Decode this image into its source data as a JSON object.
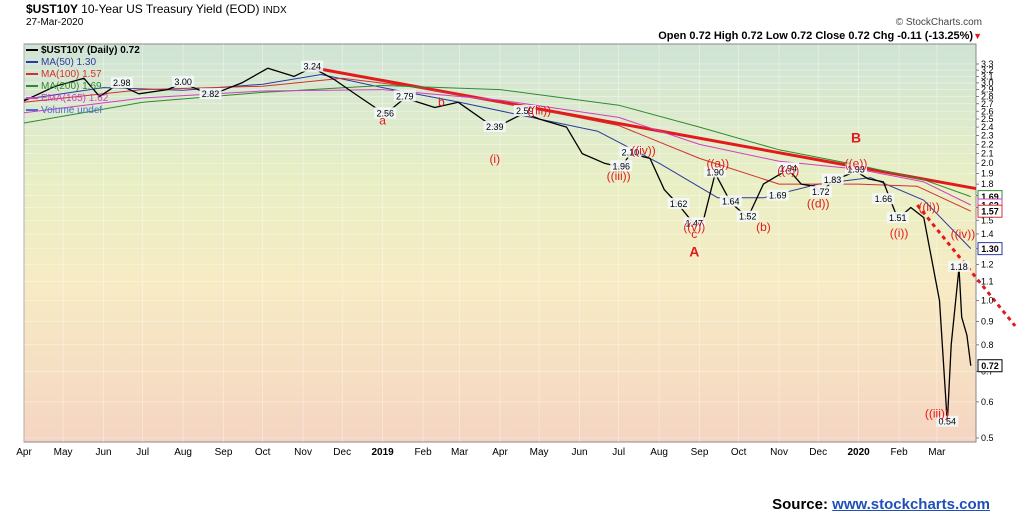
{
  "header": {
    "symbol": "$UST10Y",
    "description": "10-Year US Treasury Yield (EOD)",
    "exchange": "INDX",
    "date": "27-Mar-2020",
    "watermark": "© StockCharts.com",
    "ohlc": "Open 0.72  High 0.72  Low 0.72  Close 0.72  Chg -0.11 (-13.25%)"
  },
  "legend": [
    {
      "label": "$UST10Y (Daily) 0.72",
      "color": "#000000"
    },
    {
      "label": "MA(50) 1.30",
      "color": "#2b3aa0"
    },
    {
      "label": "MA(100) 1.57",
      "color": "#d43030"
    },
    {
      "label": "MA(200) 1.69",
      "color": "#2e8b2e"
    },
    {
      "label": "EMA(165) 1.62",
      "color": "#d040c0"
    },
    {
      "label": "Volume undef",
      "color": "#4a6cd0"
    }
  ],
  "source": {
    "label": "Source:",
    "link": "www.stockcharts.com"
  },
  "colors": {
    "trendline": "#e31a1c",
    "wave_label": "#e31a1c",
    "price": "#000000"
  },
  "chart_data": {
    "type": "line",
    "title": "$UST10Y 10-Year US Treasury Yield (EOD) INDX",
    "ylim": [
      0.5,
      3.3
    ],
    "y_scale": "log",
    "x_range": [
      "2018-04-01",
      "2020-03-31"
    ],
    "x_tick_labels": [
      {
        "label": "Apr",
        "date": "2018-04-01"
      },
      {
        "label": "May",
        "date": "2018-05-01"
      },
      {
        "label": "Jun",
        "date": "2018-06-01"
      },
      {
        "label": "Jul",
        "date": "2018-07-01"
      },
      {
        "label": "Aug",
        "date": "2018-08-01"
      },
      {
        "label": "Sep",
        "date": "2018-09-01"
      },
      {
        "label": "Oct",
        "date": "2018-10-01"
      },
      {
        "label": "Nov",
        "date": "2018-11-01"
      },
      {
        "label": "Dec",
        "date": "2018-12-01"
      },
      {
        "label": "2019",
        "date": "2019-01-01"
      },
      {
        "label": "Feb",
        "date": "2019-02-01"
      },
      {
        "label": "Mar",
        "date": "2019-03-01"
      },
      {
        "label": "Apr",
        "date": "2019-04-01"
      },
      {
        "label": "May",
        "date": "2019-05-01"
      },
      {
        "label": "Jun",
        "date": "2019-06-01"
      },
      {
        "label": "Jul",
        "date": "2019-07-01"
      },
      {
        "label": "Aug",
        "date": "2019-08-01"
      },
      {
        "label": "Sep",
        "date": "2019-09-01"
      },
      {
        "label": "Oct",
        "date": "2019-10-01"
      },
      {
        "label": "Nov",
        "date": "2019-11-01"
      },
      {
        "label": "Dec",
        "date": "2019-12-01"
      },
      {
        "label": "2020",
        "date": "2020-01-01"
      },
      {
        "label": "Feb",
        "date": "2020-02-01"
      },
      {
        "label": "Mar",
        "date": "2020-03-01"
      }
    ],
    "y_ticks": [
      0.5,
      0.6,
      0.7,
      0.8,
      0.9,
      1.0,
      1.1,
      1.2,
      1.3,
      1.4,
      1.5,
      1.6,
      1.7,
      1.8,
      1.9,
      2.0,
      2.1,
      2.2,
      2.3,
      2.4,
      2.5,
      2.6,
      2.7,
      2.8,
      2.9,
      3.0,
      3.1,
      3.2,
      3.3
    ],
    "series": [
      {
        "name": "$UST10Y (Daily) 0.72",
        "color": "#000000",
        "points": [
          [
            "2018-04-01",
            2.74
          ],
          [
            "2018-04-25",
            2.95
          ],
          [
            "2018-05-17",
            3.07
          ],
          [
            "2018-05-29",
            2.8
          ],
          [
            "2018-06-12",
            2.98
          ],
          [
            "2018-06-28",
            2.84
          ],
          [
            "2018-07-20",
            2.9
          ],
          [
            "2018-08-01",
            3.0
          ],
          [
            "2018-08-22",
            2.82
          ],
          [
            "2018-09-15",
            3.0
          ],
          [
            "2018-10-05",
            3.23
          ],
          [
            "2018-10-25",
            3.1
          ],
          [
            "2018-11-08",
            3.24
          ],
          [
            "2018-11-25",
            3.05
          ],
          [
            "2018-12-10",
            2.85
          ],
          [
            "2019-01-03",
            2.56
          ],
          [
            "2019-01-18",
            2.78
          ],
          [
            "2019-02-10",
            2.65
          ],
          [
            "2019-02-28",
            2.72
          ],
          [
            "2019-03-28",
            2.39
          ],
          [
            "2019-04-20",
            2.58
          ],
          [
            "2019-05-01",
            2.5
          ],
          [
            "2019-05-22",
            2.4
          ],
          [
            "2019-06-03",
            2.1
          ],
          [
            "2019-06-20",
            2.0
          ],
          [
            "2019-07-03",
            1.96
          ],
          [
            "2019-07-10",
            2.1
          ],
          [
            "2019-07-25",
            2.05
          ],
          [
            "2019-08-05",
            1.75
          ],
          [
            "2019-08-16",
            1.62
          ],
          [
            "2019-08-28",
            1.47
          ],
          [
            "2019-09-04",
            1.5
          ],
          [
            "2019-09-13",
            1.9
          ],
          [
            "2019-09-25",
            1.64
          ],
          [
            "2019-10-08",
            1.52
          ],
          [
            "2019-10-20",
            1.8
          ],
          [
            "2019-11-08",
            1.94
          ],
          [
            "2019-11-18",
            1.8
          ],
          [
            "2019-11-28",
            1.78
          ],
          [
            "2019-12-03",
            1.72
          ],
          [
            "2019-12-12",
            1.83
          ],
          [
            "2019-12-30",
            1.92
          ],
          [
            "2020-01-08",
            1.85
          ],
          [
            "2020-01-20",
            1.82
          ],
          [
            "2020-01-31",
            1.51
          ],
          [
            "2020-02-10",
            1.6
          ],
          [
            "2020-02-20",
            1.52
          ],
          [
            "2020-03-03",
            1.0
          ],
          [
            "2020-03-09",
            0.54
          ],
          [
            "2020-03-12",
            0.8
          ],
          [
            "2020-03-18",
            1.18
          ],
          [
            "2020-03-20",
            0.92
          ],
          [
            "2020-03-24",
            0.84
          ],
          [
            "2020-03-27",
            0.72
          ]
        ]
      },
      {
        "name": "MA(50) 1.30",
        "color": "#2b3aa0",
        "points": [
          [
            "2018-04-01",
            2.76
          ],
          [
            "2018-06-01",
            2.93
          ],
          [
            "2018-08-01",
            2.89
          ],
          [
            "2018-10-01",
            2.98
          ],
          [
            "2018-11-15",
            3.13
          ],
          [
            "2019-01-01",
            2.93
          ],
          [
            "2019-03-01",
            2.72
          ],
          [
            "2019-05-01",
            2.5
          ],
          [
            "2019-06-15",
            2.35
          ],
          [
            "2019-08-01",
            2.0
          ],
          [
            "2019-09-15",
            1.68
          ],
          [
            "2019-10-20",
            1.68
          ],
          [
            "2019-12-01",
            1.8
          ],
          [
            "2020-01-10",
            1.86
          ],
          [
            "2020-02-20",
            1.66
          ],
          [
            "2020-03-27",
            1.3
          ]
        ]
      },
      {
        "name": "MA(100) 1.57",
        "color": "#d43030",
        "points": [
          [
            "2018-04-01",
            2.72
          ],
          [
            "2018-07-01",
            2.9
          ],
          [
            "2018-10-01",
            2.95
          ],
          [
            "2018-12-01",
            3.07
          ],
          [
            "2019-02-01",
            2.92
          ],
          [
            "2019-05-01",
            2.62
          ],
          [
            "2019-07-01",
            2.42
          ],
          [
            "2019-09-01",
            2.05
          ],
          [
            "2019-11-01",
            1.8
          ],
          [
            "2020-01-01",
            1.8
          ],
          [
            "2020-02-15",
            1.78
          ],
          [
            "2020-03-27",
            1.57
          ]
        ]
      },
      {
        "name": "MA(200) 1.69",
        "color": "#2e8b2e",
        "points": [
          [
            "2018-04-01",
            2.45
          ],
          [
            "2018-07-01",
            2.72
          ],
          [
            "2018-10-01",
            2.86
          ],
          [
            "2019-01-01",
            2.96
          ],
          [
            "2019-04-01",
            2.9
          ],
          [
            "2019-07-01",
            2.68
          ],
          [
            "2019-09-01",
            2.4
          ],
          [
            "2019-11-01",
            2.14
          ],
          [
            "2020-01-01",
            1.98
          ],
          [
            "2020-02-20",
            1.84
          ],
          [
            "2020-03-27",
            1.69
          ]
        ]
      },
      {
        "name": "EMA(165) 1.62",
        "color": "#d040c0",
        "points": [
          [
            "2018-04-01",
            2.58
          ],
          [
            "2018-07-01",
            2.78
          ],
          [
            "2018-10-01",
            2.88
          ],
          [
            "2019-01-01",
            2.9
          ],
          [
            "2019-04-01",
            2.75
          ],
          [
            "2019-07-01",
            2.52
          ],
          [
            "2019-09-01",
            2.2
          ],
          [
            "2019-11-01",
            2.02
          ],
          [
            "2020-01-01",
            1.94
          ],
          [
            "2020-02-20",
            1.82
          ],
          [
            "2020-03-27",
            1.62
          ]
        ]
      }
    ],
    "right_axis_tags": [
      {
        "value": 1.69,
        "label": "1.69",
        "color": "#2e8b2e"
      },
      {
        "value": 1.62,
        "label": "1.62",
        "color": "#d040c0"
      },
      {
        "value": 1.57,
        "label": "1.57",
        "color": "#d43030"
      },
      {
        "value": 1.3,
        "label": "1.30",
        "color": "#2b3aa0"
      },
      {
        "value": 0.72,
        "label": "0.72",
        "color": "#000000"
      }
    ],
    "price_labels": [
      {
        "date": "2018-06-15",
        "value": 2.98,
        "text": "2.98"
      },
      {
        "date": "2018-08-01",
        "value": 3.0,
        "text": "3.00"
      },
      {
        "date": "2018-08-22",
        "value": 2.82,
        "text": "2.82"
      },
      {
        "date": "2018-11-08",
        "value": 3.24,
        "text": "3.24"
      },
      {
        "date": "2019-01-03",
        "value": 2.56,
        "text": "2.56"
      },
      {
        "date": "2019-01-18",
        "value": 2.79,
        "text": "2.79"
      },
      {
        "date": "2019-03-28",
        "value": 2.39,
        "text": "2.39"
      },
      {
        "date": "2019-04-20",
        "value": 2.59,
        "text": "2.59"
      },
      {
        "date": "2019-07-03",
        "value": 1.96,
        "text": "1.96"
      },
      {
        "date": "2019-07-10",
        "value": 2.1,
        "text": "2.10"
      },
      {
        "date": "2019-08-16",
        "value": 1.62,
        "text": "1.62"
      },
      {
        "date": "2019-08-28",
        "value": 1.47,
        "text": "1.47"
      },
      {
        "date": "2019-09-13",
        "value": 1.9,
        "text": "1.90"
      },
      {
        "date": "2019-09-25",
        "value": 1.64,
        "text": "1.64"
      },
      {
        "date": "2019-10-08",
        "value": 1.52,
        "text": "1.52"
      },
      {
        "date": "2019-10-31",
        "value": 1.69,
        "text": "1.69"
      },
      {
        "date": "2019-11-08",
        "value": 1.94,
        "text": "1.94"
      },
      {
        "date": "2019-12-03",
        "value": 1.72,
        "text": "1.72"
      },
      {
        "date": "2019-12-12",
        "value": 1.83,
        "text": "1.83"
      },
      {
        "date": "2019-12-30",
        "value": 1.93,
        "text": "1.93"
      },
      {
        "date": "2020-01-20",
        "value": 1.66,
        "text": "1.66"
      },
      {
        "date": "2020-01-31",
        "value": 1.51,
        "text": "1.51"
      },
      {
        "date": "2020-03-18",
        "value": 1.18,
        "text": "1.18"
      },
      {
        "date": "2020-03-09",
        "value": 0.54,
        "text": "0.54"
      }
    ],
    "wave_labels": [
      {
        "date": "2019-01-01",
        "value": 2.43,
        "text": "a"
      },
      {
        "date": "2019-02-15",
        "value": 2.67,
        "text": "b"
      },
      {
        "date": "2019-03-28",
        "value": 2.0,
        "text": "(i)"
      },
      {
        "date": "2019-05-01",
        "value": 2.56,
        "text": "((iii))"
      },
      {
        "date": "2019-07-01",
        "value": 1.84,
        "text": "((iii))"
      },
      {
        "date": "2019-07-20",
        "value": 2.09,
        "text": "((iv))"
      },
      {
        "date": "2019-08-28",
        "value": 1.42,
        "text": "((v))"
      },
      {
        "date": "2019-08-28",
        "value": 1.37,
        "text": "c"
      },
      {
        "date": "2019-08-28",
        "value": 1.25,
        "text": "A"
      },
      {
        "date": "2019-09-15",
        "value": 1.96,
        "text": "((a))"
      },
      {
        "date": "2019-10-20",
        "value": 1.42,
        "text": "(b)"
      },
      {
        "date": "2019-11-08",
        "value": 1.89,
        "text": "((c))"
      },
      {
        "date": "2019-12-01",
        "value": 1.6,
        "text": "((d))"
      },
      {
        "date": "2019-12-30",
        "value": 1.96,
        "text": "((e))"
      },
      {
        "date": "2019-12-30",
        "value": 2.22,
        "text": "B"
      },
      {
        "date": "2020-02-01",
        "value": 1.38,
        "text": "((i))"
      },
      {
        "date": "2020-02-24",
        "value": 1.57,
        "text": "((ii))"
      },
      {
        "date": "2020-03-01",
        "value": 0.555,
        "text": "((iii))"
      },
      {
        "date": "2020-03-21",
        "value": 1.37,
        "text": "((iv))"
      }
    ],
    "trendlines": [
      {
        "from": [
          "2018-11-08",
          3.24
        ],
        "to": [
          "2020-03-31",
          1.76
        ],
        "style": "solid"
      },
      {
        "from": [
          "2020-02-15",
          1.62
        ],
        "to": [
          "2020-04-30",
          0.88
        ],
        "style": "dotted"
      }
    ]
  }
}
